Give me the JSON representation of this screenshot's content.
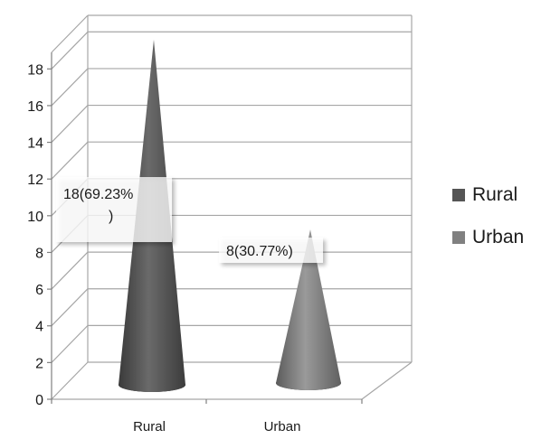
{
  "chart_data": {
    "type": "bar",
    "style": "3d-cone",
    "categories": [
      "Rural",
      "Urban"
    ],
    "series": [
      {
        "name": "Rural",
        "color": "#555555",
        "values": [
          18,
          null
        ]
      },
      {
        "name": "Urban",
        "color": "#808080",
        "values": [
          null,
          8
        ]
      }
    ],
    "values": [
      18,
      8
    ],
    "data_labels": [
      "18(69.23%\n)",
      "8(30.77%)"
    ],
    "ylim": [
      0,
      18
    ],
    "yticks": [
      0,
      2,
      4,
      6,
      8,
      10,
      12,
      14,
      16,
      18
    ],
    "grid": true,
    "legend_position": "right"
  },
  "legend": [
    {
      "label": "Rural",
      "color": "#555555"
    },
    {
      "label": "Urban",
      "color": "#808080"
    }
  ]
}
